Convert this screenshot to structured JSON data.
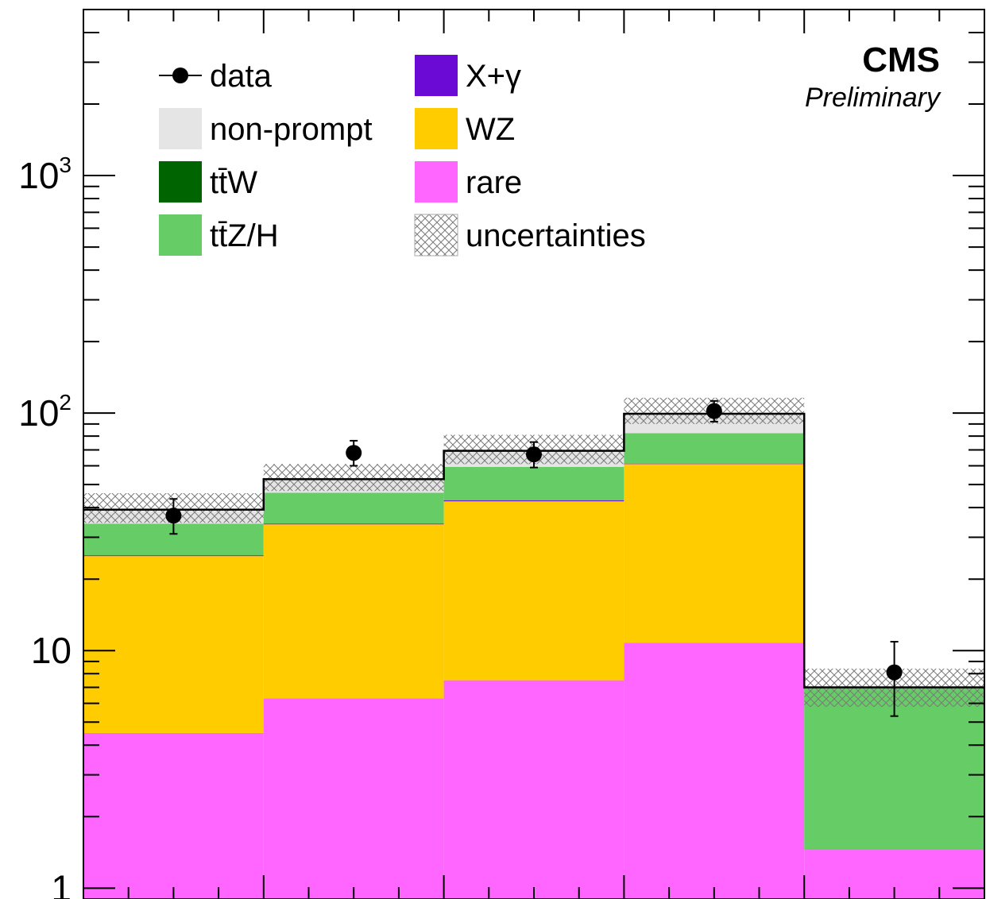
{
  "experiment_label": "CMS",
  "status_label": "Preliminary",
  "colors": {
    "non-prompt": "#e5e5e5",
    "ttW": "#006400",
    "ttZ/H": "#66cc66",
    "X+gamma": "#6a0ad4",
    "WZ": "#ffcc00",
    "rare": "#ff66ff",
    "total_line": "#000000"
  },
  "legend": [
    {
      "key": "data",
      "label": "data",
      "style": "marker"
    },
    {
      "key": "non-prompt",
      "label": "non-prompt",
      "style": "fill"
    },
    {
      "key": "ttW",
      "label": "tt̄W",
      "style": "fill"
    },
    {
      "key": "ttZ/H",
      "label": "tt̄Z/H",
      "style": "fill"
    },
    {
      "key": "X+gamma",
      "label": "X+γ",
      "style": "fill"
    },
    {
      "key": "WZ",
      "label": "WZ",
      "style": "fill"
    },
    {
      "key": "rare",
      "label": "rare",
      "style": "fill"
    },
    {
      "key": "uncertainties",
      "label": "uncertainties",
      "style": "hatch"
    }
  ],
  "chart_data": {
    "type": "bar",
    "stacked": true,
    "log_y": true,
    "ylim": [
      0.9,
      5000
    ],
    "grid": false,
    "legend_position": "top-left",
    "bins": 5,
    "y_ticks": [
      {
        "value": 1,
        "base": "1",
        "exp": ""
      },
      {
        "value": 10,
        "base": "10",
        "exp": ""
      },
      {
        "value": 100,
        "base": "10",
        "exp": "2"
      },
      {
        "value": 1000,
        "base": "10",
        "exp": "3"
      }
    ],
    "series": [
      {
        "name": "rare",
        "values": [
          4.5,
          6.3,
          7.5,
          10.8,
          1.45
        ]
      },
      {
        "name": "WZ",
        "values": [
          20.5,
          27.7,
          35.0,
          50.2,
          0.0
        ]
      },
      {
        "name": "X+γ",
        "values": [
          0.2,
          0.2,
          0.4,
          0.3,
          0.0
        ]
      },
      {
        "name": "tt̄W",
        "values": [
          0.0,
          0.0,
          0.0,
          0.0,
          0.0
        ]
      },
      {
        "name": "tt̄Z/H",
        "values": [
          9.0,
          12.0,
          16.5,
          21.0,
          5.55
        ]
      },
      {
        "name": "non-prompt",
        "values": [
          5.0,
          6.5,
          10.0,
          17.0,
          0.0
        ]
      }
    ],
    "total_uncertainty": [
      {
        "low": 34.5,
        "high": 46.0
      },
      {
        "low": 47.0,
        "high": 61.0
      },
      {
        "low": 61.0,
        "high": 81.0
      },
      {
        "low": 90.0,
        "high": 116.0
      },
      {
        "low": 5.8,
        "high": 8.4
      }
    ],
    "data": [
      {
        "value": 37,
        "err_low": 6,
        "err_high": 6.5
      },
      {
        "value": 68,
        "err_low": 8,
        "err_high": 8.5
      },
      {
        "value": 67,
        "err_low": 8,
        "err_high": 8.5
      },
      {
        "value": 102,
        "err_low": 10,
        "err_high": 10.5
      },
      {
        "value": 8.1,
        "err_low": 2.8,
        "err_high": 2.8
      }
    ]
  }
}
